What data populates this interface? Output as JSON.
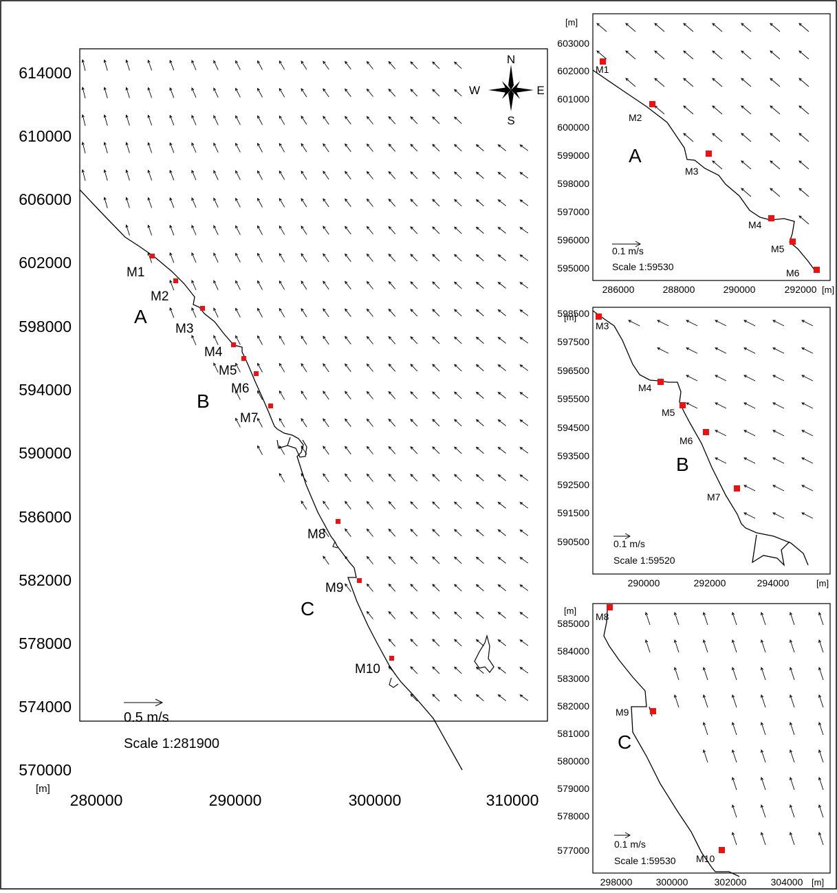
{
  "main_map": {
    "unit": "[m]",
    "y_ticks": [
      "614000",
      "610000",
      "606000",
      "602000",
      "598000",
      "594000",
      "590000",
      "586000",
      "582000",
      "578000",
      "574000",
      "570000"
    ],
    "x_ticks": [
      "280000",
      "290000",
      "300000",
      "310000"
    ],
    "compass": {
      "n": "N",
      "s": "S",
      "e": "E",
      "w": "W"
    },
    "markers": [
      "M1",
      "M2",
      "M3",
      "M4",
      "M5",
      "M6",
      "M7",
      "M8",
      "M9",
      "M10"
    ],
    "zones": [
      "A",
      "B",
      "C"
    ],
    "legend": {
      "speed": "0.5 m/s",
      "scale": "Scale 1:281900"
    }
  },
  "inset_a": {
    "unit": "[m]",
    "x_unit": "[m]",
    "y_ticks": [
      "603000",
      "602000",
      "601000",
      "600000",
      "599000",
      "598000",
      "597000",
      "596000",
      "595000"
    ],
    "x_ticks": [
      "286000",
      "288000",
      "290000",
      "292000"
    ],
    "markers": [
      "M1",
      "M2",
      "M3",
      "M4",
      "M5",
      "M6"
    ],
    "zone": "A",
    "legend": {
      "speed": "0.1 m/s",
      "scale": "Scale 1:59530"
    }
  },
  "inset_b": {
    "unit": "[m]",
    "x_unit": "[m]",
    "y_ticks": [
      "598500",
      "597500",
      "596500",
      "595500",
      "594500",
      "593500",
      "592500",
      "591500",
      "590500"
    ],
    "x_ticks": [
      "290000",
      "292000",
      "294000"
    ],
    "markers": [
      "M3",
      "M4",
      "M5",
      "M6",
      "M7"
    ],
    "zone": "B",
    "legend": {
      "speed": "0.1 m/s",
      "scale": "Scale 1:59520"
    }
  },
  "inset_c": {
    "unit": "[m]",
    "x_unit": "[m]",
    "y_ticks": [
      "585000",
      "584000",
      "583000",
      "582000",
      "581000",
      "580000",
      "579000",
      "578000",
      "577000"
    ],
    "x_ticks": [
      "298000",
      "300000",
      "302000",
      "304000"
    ],
    "markers": [
      "M8",
      "M9",
      "M10"
    ],
    "zone": "C",
    "legend": {
      "speed": "0.1 m/s",
      "scale": "Scale 1:59530"
    }
  },
  "colors": {
    "marker": "#ee1111",
    "line": "#000000",
    "background": "#ffffff"
  }
}
